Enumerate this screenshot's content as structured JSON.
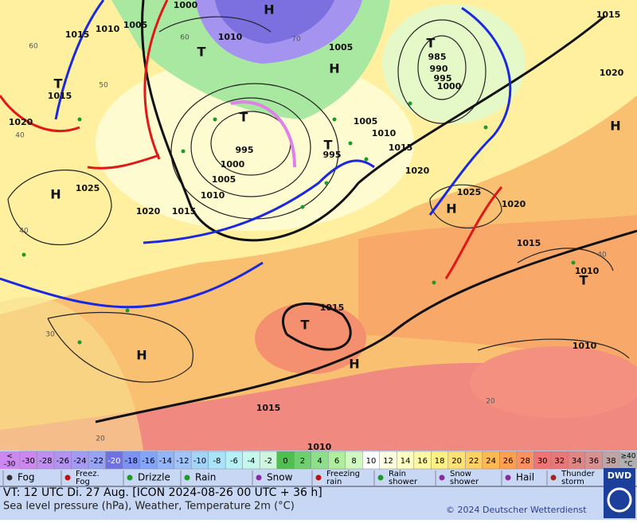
{
  "map": {
    "pressure_labels": [
      "1000",
      "1010",
      "1005",
      "1015",
      "1010",
      "1005",
      "1015",
      "1020",
      "985",
      "990",
      "995",
      "1000",
      "1015",
      "1020",
      "995",
      "1000",
      "1005",
      "1010",
      "1005",
      "1010",
      "1015",
      "995",
      "1020",
      "1025",
      "1025",
      "1020",
      "1020",
      "1015",
      "1015",
      "1010",
      "1015",
      "1010",
      "1015",
      "1010"
    ],
    "centers": [
      "H",
      "T",
      "H",
      "T",
      "T",
      "T",
      "T",
      "H",
      "H",
      "H",
      "T",
      "T",
      "H",
      "H"
    ],
    "grid_labels": [
      "60",
      "50",
      "40",
      "40",
      "30",
      "20",
      "70",
      "60",
      "40",
      "20"
    ]
  },
  "temperature_scale": {
    "low_label": [
      "<",
      "-30"
    ],
    "ticks": [
      -30,
      -28,
      -26,
      -24,
      -22,
      -20,
      -18,
      -16,
      -14,
      -12,
      -10,
      -8,
      -6,
      -4,
      -2,
      0,
      2,
      4,
      6,
      8,
      10,
      12,
      14,
      16,
      18,
      20,
      22,
      24,
      26,
      28,
      30,
      32,
      34,
      36,
      38
    ],
    "colors": [
      "#cc88ee",
      "#c090f0",
      "#b294f0",
      "#a49af2",
      "#98a4f2",
      "#6f72e0",
      "#7e92f0",
      "#84a4f6",
      "#92b4f8",
      "#a0c4f8",
      "#a4d4f8",
      "#aae2f8",
      "#b6f0f6",
      "#c4f8ec",
      "#cef6dc",
      "#4fbf4f",
      "#6ecf6e",
      "#8edf8a",
      "#b0ee9e",
      "#d2f8c2",
      "#ffffff",
      "#ffffe0",
      "#ffffc4",
      "#fff8a4",
      "#fff084",
      "#ffe274",
      "#ffd062",
      "#ffb852",
      "#ffa050",
      "#ff9060",
      "#f07474",
      "#e87878",
      "#e08484",
      "#d89090",
      "#c0a4a4"
    ],
    "high_label": [
      "≥40",
      "°C"
    ]
  },
  "weather_legend": [
    [
      "Fog"
    ],
    [
      "Freez.",
      "Fog"
    ],
    [
      "Drizzle"
    ],
    [
      "Rain"
    ],
    [
      "Snow"
    ],
    [
      "Freezing",
      "rain"
    ],
    [
      "Rain",
      "shower"
    ],
    [
      "Snow",
      "shower"
    ],
    [
      "Hail"
    ],
    [
      "Thunder",
      "storm"
    ]
  ],
  "footer": {
    "valid_time": "VT: 12 UTC Di.  27 Aug. [ICON 2024-08-26  00 UTC + 36 h]",
    "description": "Sea level pressure (hPa), Weather, Temperature 2m (°C)",
    "copyright": "© 2024 Deutscher Wetterdienst",
    "logo": "DWD"
  }
}
